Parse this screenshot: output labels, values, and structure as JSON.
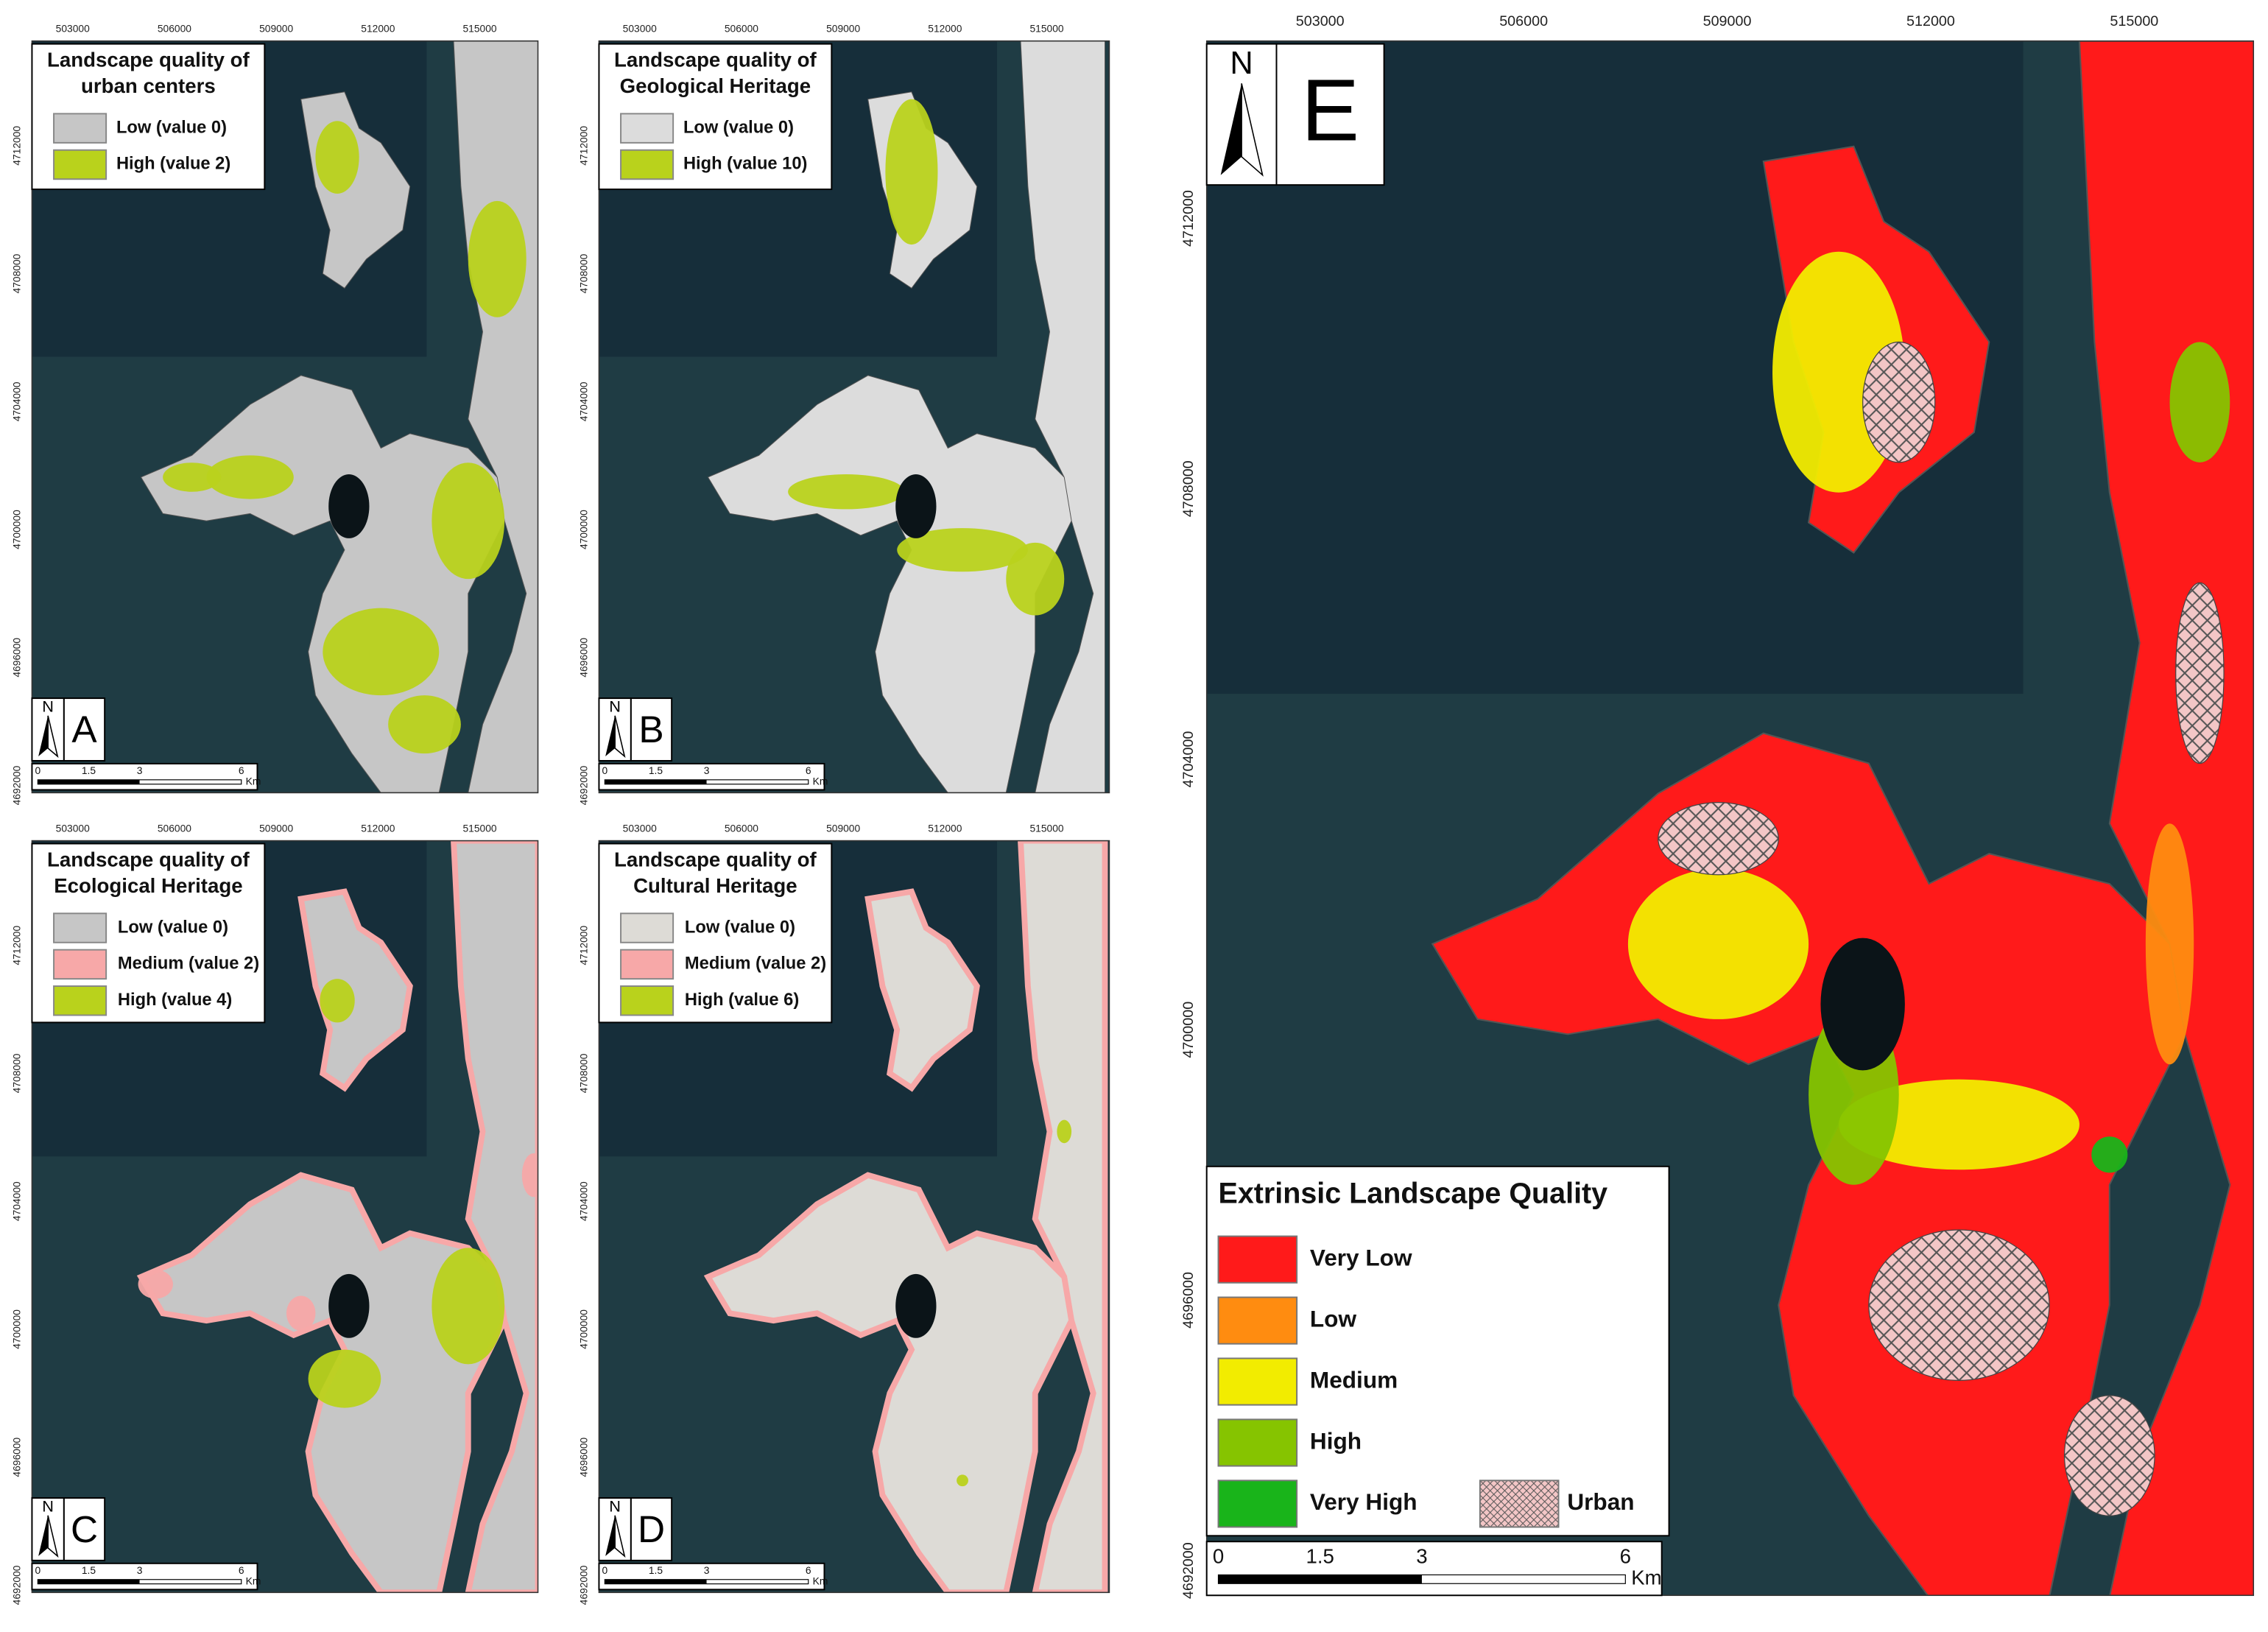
{
  "panels": [
    {
      "letter": "A",
      "north": "N",
      "title": [
        "Landscape quality of",
        "urban centers"
      ],
      "legend": [
        {
          "label": "Low (value 0)",
          "color": "#c6c6c6"
        },
        {
          "label": "High (value 2)",
          "color": "#b9d21c"
        }
      ],
      "xticks": [
        503000,
        506000,
        509000,
        512000,
        515000
      ],
      "yticks": [
        4712000,
        4708000,
        4704000,
        4700000,
        4696000,
        4692000
      ],
      "scale": [
        "0",
        "1.5",
        "3",
        "6",
        "Km"
      ]
    },
    {
      "letter": "B",
      "north": "N",
      "title": [
        "Landscape quality of",
        "Geological Heritage"
      ],
      "legend": [
        {
          "label": "Low (value 0)",
          "color": "#dcdcdc"
        },
        {
          "label": "High (value 10)",
          "color": "#b9d21c"
        }
      ],
      "xticks": [
        503000,
        506000,
        509000,
        512000,
        515000
      ],
      "yticks": [
        4712000,
        4708000,
        4704000,
        4700000,
        4696000,
        4692000
      ],
      "scale": [
        "0",
        "1.5",
        "3",
        "6",
        "Km"
      ]
    },
    {
      "letter": "C",
      "north": "N",
      "title": [
        "Landscape quality of",
        "Ecological Heritage"
      ],
      "legend": [
        {
          "label": "Low (value 0)",
          "color": "#c6c6c6"
        },
        {
          "label": "Medium (value 2)",
          "color": "#f7a8a8"
        },
        {
          "label": "High (value 4)",
          "color": "#b9d21c"
        }
      ],
      "xticks": [
        503000,
        506000,
        509000,
        512000,
        515000
      ],
      "yticks": [
        4712000,
        4708000,
        4704000,
        4700000,
        4696000,
        4692000
      ],
      "scale": [
        "0",
        "1.5",
        "3",
        "6",
        "Km"
      ]
    },
    {
      "letter": "D",
      "north": "N",
      "title": [
        "Landscape quality of",
        "Cultural Heritage"
      ],
      "legend": [
        {
          "label": "Low (value 0)",
          "color": "#dddbd6"
        },
        {
          "label": "Medium (value 2)",
          "color": "#f7a8a8"
        },
        {
          "label": "High (value 6)",
          "color": "#b9d21c"
        }
      ],
      "xticks": [
        503000,
        506000,
        509000,
        512000,
        515000
      ],
      "yticks": [
        4712000,
        4708000,
        4704000,
        4700000,
        4696000,
        4692000
      ],
      "scale": [
        "0",
        "1.5",
        "3",
        "6",
        "Km"
      ]
    },
    {
      "letter": "E",
      "north": "N",
      "title": [
        "Extrinsic Landscape Quality"
      ],
      "legend": [
        {
          "label": "Very Low",
          "color": "#ff1a1a"
        },
        {
          "label": "Low",
          "color": "#ff8c10"
        },
        {
          "label": "Medium",
          "color": "#f2ec00"
        },
        {
          "label": "High",
          "color": "#86c400"
        },
        {
          "label": "Very High",
          "color": "#19b41a"
        },
        {
          "label": "Urban",
          "color": "#f3c6c6"
        }
      ],
      "xticks": [
        503000,
        506000,
        509000,
        512000,
        515000
      ],
      "yticks": [
        4712000,
        4708000,
        4704000,
        4700000,
        4696000,
        4692000
      ],
      "scale": [
        "0",
        "1.5",
        "3",
        "6",
        "Km"
      ]
    }
  ]
}
